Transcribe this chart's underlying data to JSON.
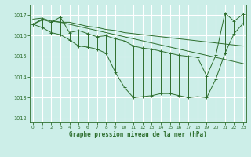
{
  "title": "Graphe pression niveau de la mer (hPa)",
  "bg_color": "#cceee8",
  "grid_color": "#ffffff",
  "line_color": "#2d6e2d",
  "marker_color": "#2d6e2d",
  "ylim": [
    1011.8,
    1017.5
  ],
  "xlim": [
    -0.3,
    23.3
  ],
  "yticks": [
    1012,
    1013,
    1014,
    1015,
    1016,
    1017
  ],
  "xticks": [
    0,
    1,
    2,
    3,
    4,
    5,
    6,
    7,
    8,
    9,
    10,
    11,
    12,
    13,
    14,
    15,
    16,
    17,
    18,
    19,
    20,
    21,
    22,
    23
  ],
  "envelope1": [
    1016.55,
    1016.75,
    1016.75,
    1016.65,
    1016.55,
    1016.45,
    1016.35,
    1016.25,
    1016.15,
    1016.05,
    1015.95,
    1015.85,
    1015.75,
    1015.65,
    1015.55,
    1015.45,
    1015.35,
    1015.25,
    1015.15,
    1015.05,
    1014.95,
    1014.85,
    1014.75,
    1014.65
  ],
  "envelope2": [
    1016.8,
    1016.85,
    1016.7,
    1016.65,
    1016.65,
    1016.55,
    1016.45,
    1016.4,
    1016.3,
    1016.25,
    1016.15,
    1016.1,
    1016.05,
    1016.0,
    1015.95,
    1015.9,
    1015.85,
    1015.8,
    1015.75,
    1015.7,
    1015.65,
    1015.6,
    1015.55,
    1015.5
  ],
  "top_values": [
    1016.55,
    1016.8,
    1016.65,
    1016.9,
    1016.15,
    1016.25,
    1016.1,
    1015.95,
    1016.0,
    1015.85,
    1015.75,
    1015.5,
    1015.4,
    1015.35,
    1015.25,
    1015.15,
    1015.05,
    1015.0,
    1014.95,
    1014.05,
    1015.05,
    1017.1,
    1016.7,
    1017.05
  ],
  "bot_values": [
    1016.55,
    1016.4,
    1016.15,
    1016.05,
    1015.8,
    1015.5,
    1015.45,
    1015.35,
    1015.15,
    1014.25,
    1013.5,
    1013.0,
    1013.05,
    1013.1,
    1013.2,
    1013.2,
    1013.1,
    1013.0,
    1013.05,
    1013.0,
    1013.9,
    1015.15,
    1016.1,
    1016.6
  ]
}
